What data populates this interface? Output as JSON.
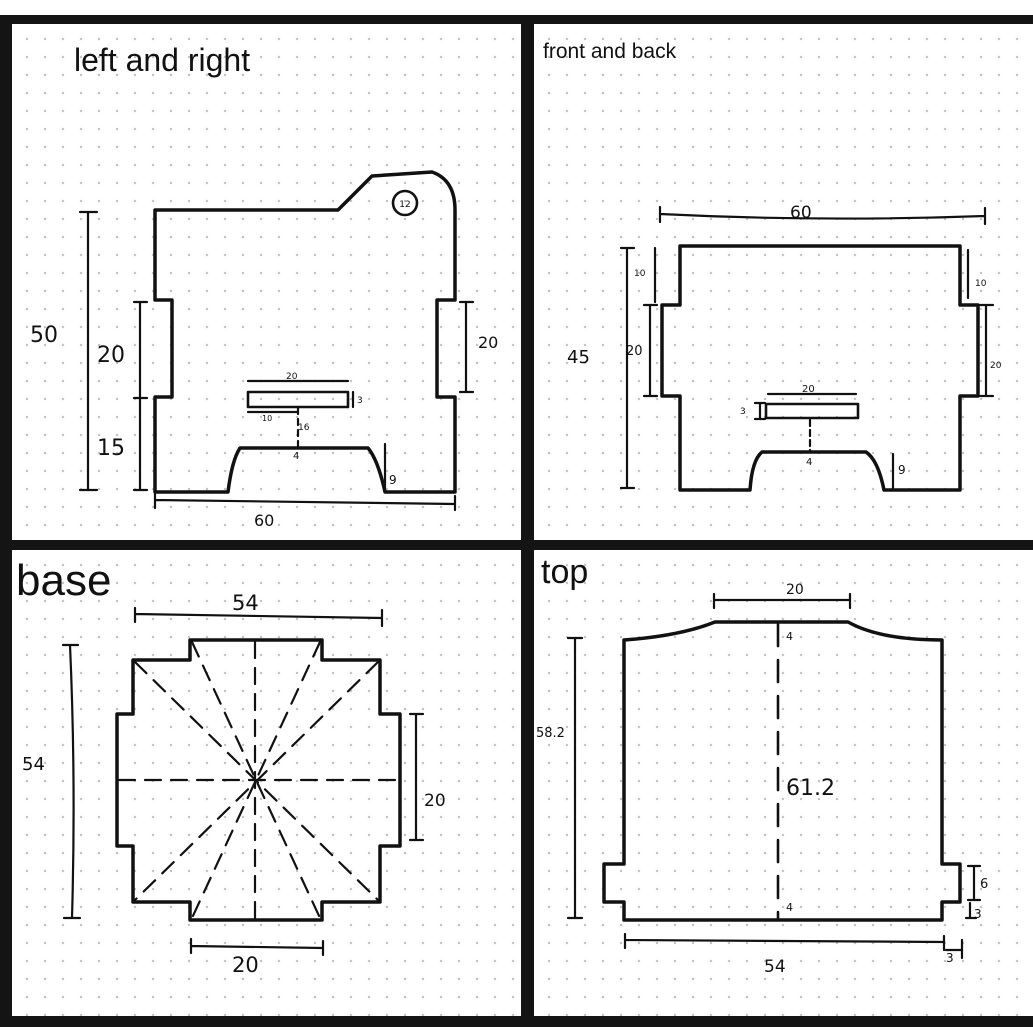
{
  "colors": {
    "background": "#ffffff",
    "dot_grid": "#c4c4c4",
    "frame": "#141414",
    "ink": "#111111"
  },
  "panels": {
    "left_and_right": {
      "title": "left and right",
      "dims": {
        "height": "50",
        "upper": "20",
        "lower": "15",
        "right_tab": "20",
        "slot_width": "20",
        "slot_thickness": "3",
        "slot_left": "10",
        "slot_gap": "16",
        "arch_top": "4",
        "foot": "9",
        "width": "60",
        "hole": "12"
      }
    },
    "front_and_back": {
      "title": "front and back",
      "dims": {
        "width": "60",
        "height": "45",
        "left_top": "10",
        "left_tab": "20",
        "right_top": "10",
        "right_tab": "20",
        "slot_width": "20",
        "slot_thickness": "3",
        "arch_top": "4",
        "foot": "9"
      }
    },
    "base": {
      "title": "base",
      "dims": {
        "width": "54",
        "height": "54",
        "right_tab": "20",
        "bottom_tab": "20"
      }
    },
    "top": {
      "title": "top",
      "dims": {
        "tab": "20",
        "outer_height": "58.2",
        "inner_height": "61.2",
        "top_mark": "4",
        "bottom_mark": "4",
        "side_tab": "6",
        "side_small": "3",
        "width": "54",
        "corner": "3"
      }
    }
  }
}
